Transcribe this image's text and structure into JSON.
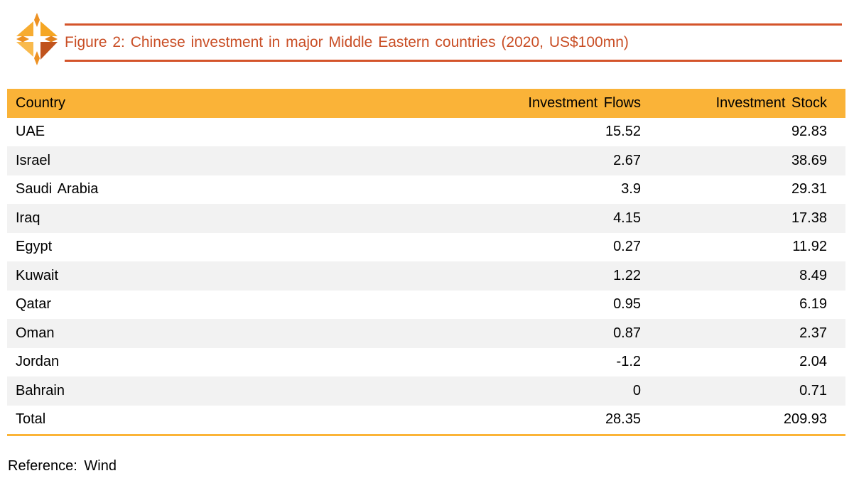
{
  "figure": {
    "title": "Figure 2: Chinese investment in major Middle Eastern countries (2020, US$100mn)"
  },
  "reference": {
    "text": "Reference: Wind"
  },
  "chart_data": {
    "type": "table",
    "title": "Figure 2: Chinese investment in major Middle Eastern countries (2020, US$100mn)",
    "columns": [
      "Country",
      "Investment Flows",
      "Investment Stock"
    ],
    "rows": [
      [
        "UAE",
        "15.52",
        "92.83"
      ],
      [
        "Israel",
        "2.67",
        "38.69"
      ],
      [
        "Saudi Arabia",
        "3.9",
        "29.31"
      ],
      [
        "Iraq",
        "4.15",
        "17.38"
      ],
      [
        "Egypt",
        "0.27",
        "11.92"
      ],
      [
        "Kuwait",
        "1.22",
        "8.49"
      ],
      [
        "Qatar",
        "0.95",
        "6.19"
      ],
      [
        "Oman",
        "0.87",
        "2.37"
      ],
      [
        "Jordan",
        "-1.2",
        "2.04"
      ],
      [
        "Bahrain",
        "0",
        "0.71"
      ],
      [
        "Total",
        "28.35",
        "209.93"
      ]
    ],
    "source": "Wind"
  },
  "style": {
    "accent_title": "#C94E25",
    "title_rule": "#D4542A",
    "header_bg": "#FAB338",
    "row_stripe": "#F2F2F2",
    "table_bottom_rule": "#FBB437"
  },
  "logo": {
    "icon": "compass-star",
    "colors": {
      "diamond": "#ED9122",
      "diamond_east": "#E2821E",
      "tri_nw": "#F7AC31",
      "tri_ne": "#F5A623",
      "tri_sw": "#F9BA4C",
      "tri_se": "#C0531D"
    }
  }
}
